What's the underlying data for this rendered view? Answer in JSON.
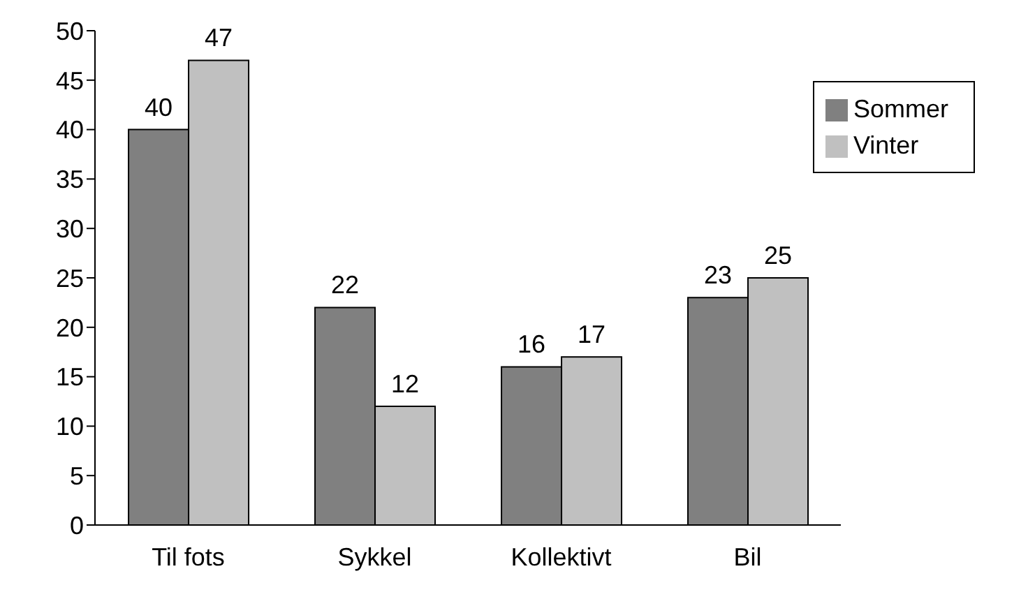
{
  "chart_data": {
    "type": "bar",
    "categories": [
      "Til fots",
      "Sykkel",
      "Kollektivt",
      "Bil"
    ],
    "series": [
      {
        "name": "Sommer",
        "color": "#808080",
        "values": [
          40,
          22,
          16,
          23
        ]
      },
      {
        "name": "Vinter",
        "color": "#c0c0c0",
        "values": [
          47,
          12,
          17,
          25
        ]
      }
    ],
    "ylim": [
      0,
      50
    ],
    "yticks": [
      0,
      5,
      10,
      15,
      20,
      25,
      30,
      35,
      40,
      45,
      50
    ],
    "data_labels": true,
    "legend": "top right",
    "grid": false
  }
}
